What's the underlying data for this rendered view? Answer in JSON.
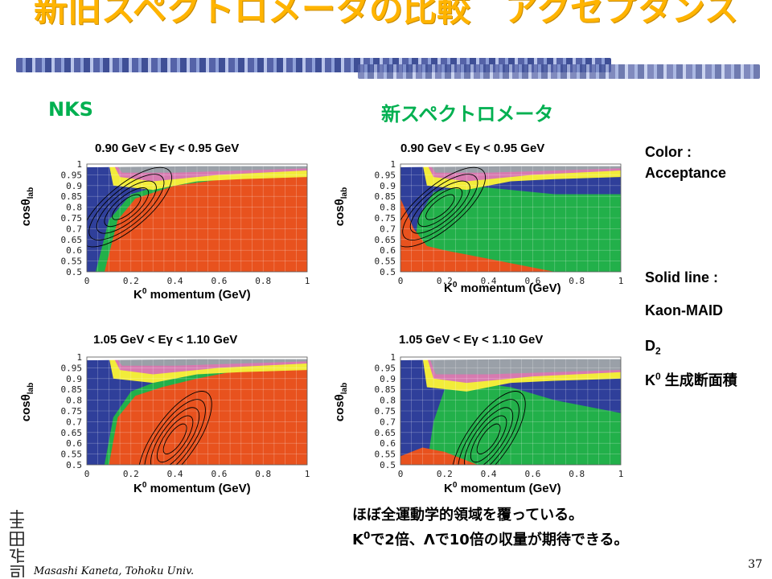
{
  "slide": {
    "title": "新旧スペクトロメータの比較　アクセプタンス",
    "col_left": "NKS",
    "col_right": "新スペクトロメータ",
    "range_low": "0.90 GeV < Eγ < 0.95 GeV",
    "range_high": "1.05 GeV < Eγ < 1.10 GeV",
    "ylabel_main": "cosθ",
    "ylabel_sub": "lab",
    "xlabel_main": "K",
    "xlabel_sup": "0",
    "xlabel_rest": " momentum (GeV)",
    "side": {
      "color_label": "Color :",
      "acceptance": "Acceptance",
      "solid_line": "Solid line :",
      "kaon_maid": "Kaon-MAID",
      "d_main": "D",
      "d_sub": "2",
      "k_main": "K",
      "k_sup": "0",
      "k_rest": " 生成断面積"
    },
    "bottom_line1": "ほぼ全運動学的領域を覆っている。",
    "bottom_line2_k": "K",
    "bottom_line2_sup": "0",
    "bottom_line2_rest": "で2倍、Λで10倍の収量が期待できる。",
    "author": "Masashi Kaneta, Tohoku Univ.",
    "page_number": "37",
    "seal_text": "金田雅司"
  },
  "colors": {
    "title": "#ffb400",
    "accent_green": "#00b050",
    "red": "#e8521e",
    "green": "#22b04a",
    "blue": "#2f3f9a",
    "yellow": "#f2ec3a",
    "pink": "#d77ab0",
    "gray": "#9aa0a8",
    "white_top": "#ffffff"
  },
  "chart_data": [
    {
      "type": "heatmap",
      "panel": "NKS low",
      "title": "0.90 GeV < Eγ < 0.95 GeV",
      "xlabel": "K0 momentum (GeV)",
      "ylabel": "cosθlab",
      "xlim": [
        0,
        1
      ],
      "ylim": [
        0.5,
        1
      ],
      "x_ticks": [
        "0",
        "0.2",
        "0.4",
        "0.6",
        "0.8",
        "1"
      ],
      "y_ticks": [
        "0.5",
        "0.55",
        "0.6",
        "0.65",
        "0.7",
        "0.75",
        "0.8",
        "0.85",
        "0.9",
        "0.95",
        "1"
      ]
    },
    {
      "type": "heatmap",
      "panel": "New low",
      "title": "0.90 GeV < Eγ < 0.95 GeV",
      "xlabel": "K0 momentum (GeV)",
      "ylabel": "cosθlab",
      "xlim": [
        0,
        1
      ],
      "ylim": [
        0.5,
        1
      ],
      "x_ticks": [
        "0",
        "0.2",
        "0.4",
        "0.6",
        "0.8",
        "1"
      ],
      "y_ticks": [
        "0.5",
        "0.55",
        "0.6",
        "0.65",
        "0.7",
        "0.75",
        "0.8",
        "0.85",
        "0.9",
        "0.95",
        "1"
      ]
    },
    {
      "type": "heatmap",
      "panel": "NKS high",
      "title": "1.05 GeV < Eγ < 1.10 GeV",
      "xlabel": "K0 momentum (GeV)",
      "ylabel": "cosθlab",
      "xlim": [
        0,
        1
      ],
      "ylim": [
        0.5,
        1
      ],
      "x_ticks": [
        "0",
        "0.2",
        "0.4",
        "0.6",
        "0.8",
        "1"
      ],
      "y_ticks": [
        "0.5",
        "0.55",
        "0.6",
        "0.65",
        "0.7",
        "0.75",
        "0.8",
        "0.85",
        "0.9",
        "0.95",
        "1"
      ]
    },
    {
      "type": "heatmap",
      "panel": "New high",
      "title": "1.05 GeV < Eγ < 1.10 GeV",
      "xlabel": "K0 momentum (GeV)",
      "ylabel": "cosθlab",
      "xlim": [
        0,
        1
      ],
      "ylim": [
        0.5,
        1
      ],
      "x_ticks": [
        "0",
        "0.2",
        "0.4",
        "0.6",
        "0.8",
        "1"
      ],
      "y_ticks": [
        "0.5",
        "0.55",
        "0.6",
        "0.65",
        "0.7",
        "0.75",
        "0.8",
        "0.85",
        "0.9",
        "0.95",
        "1"
      ]
    }
  ]
}
